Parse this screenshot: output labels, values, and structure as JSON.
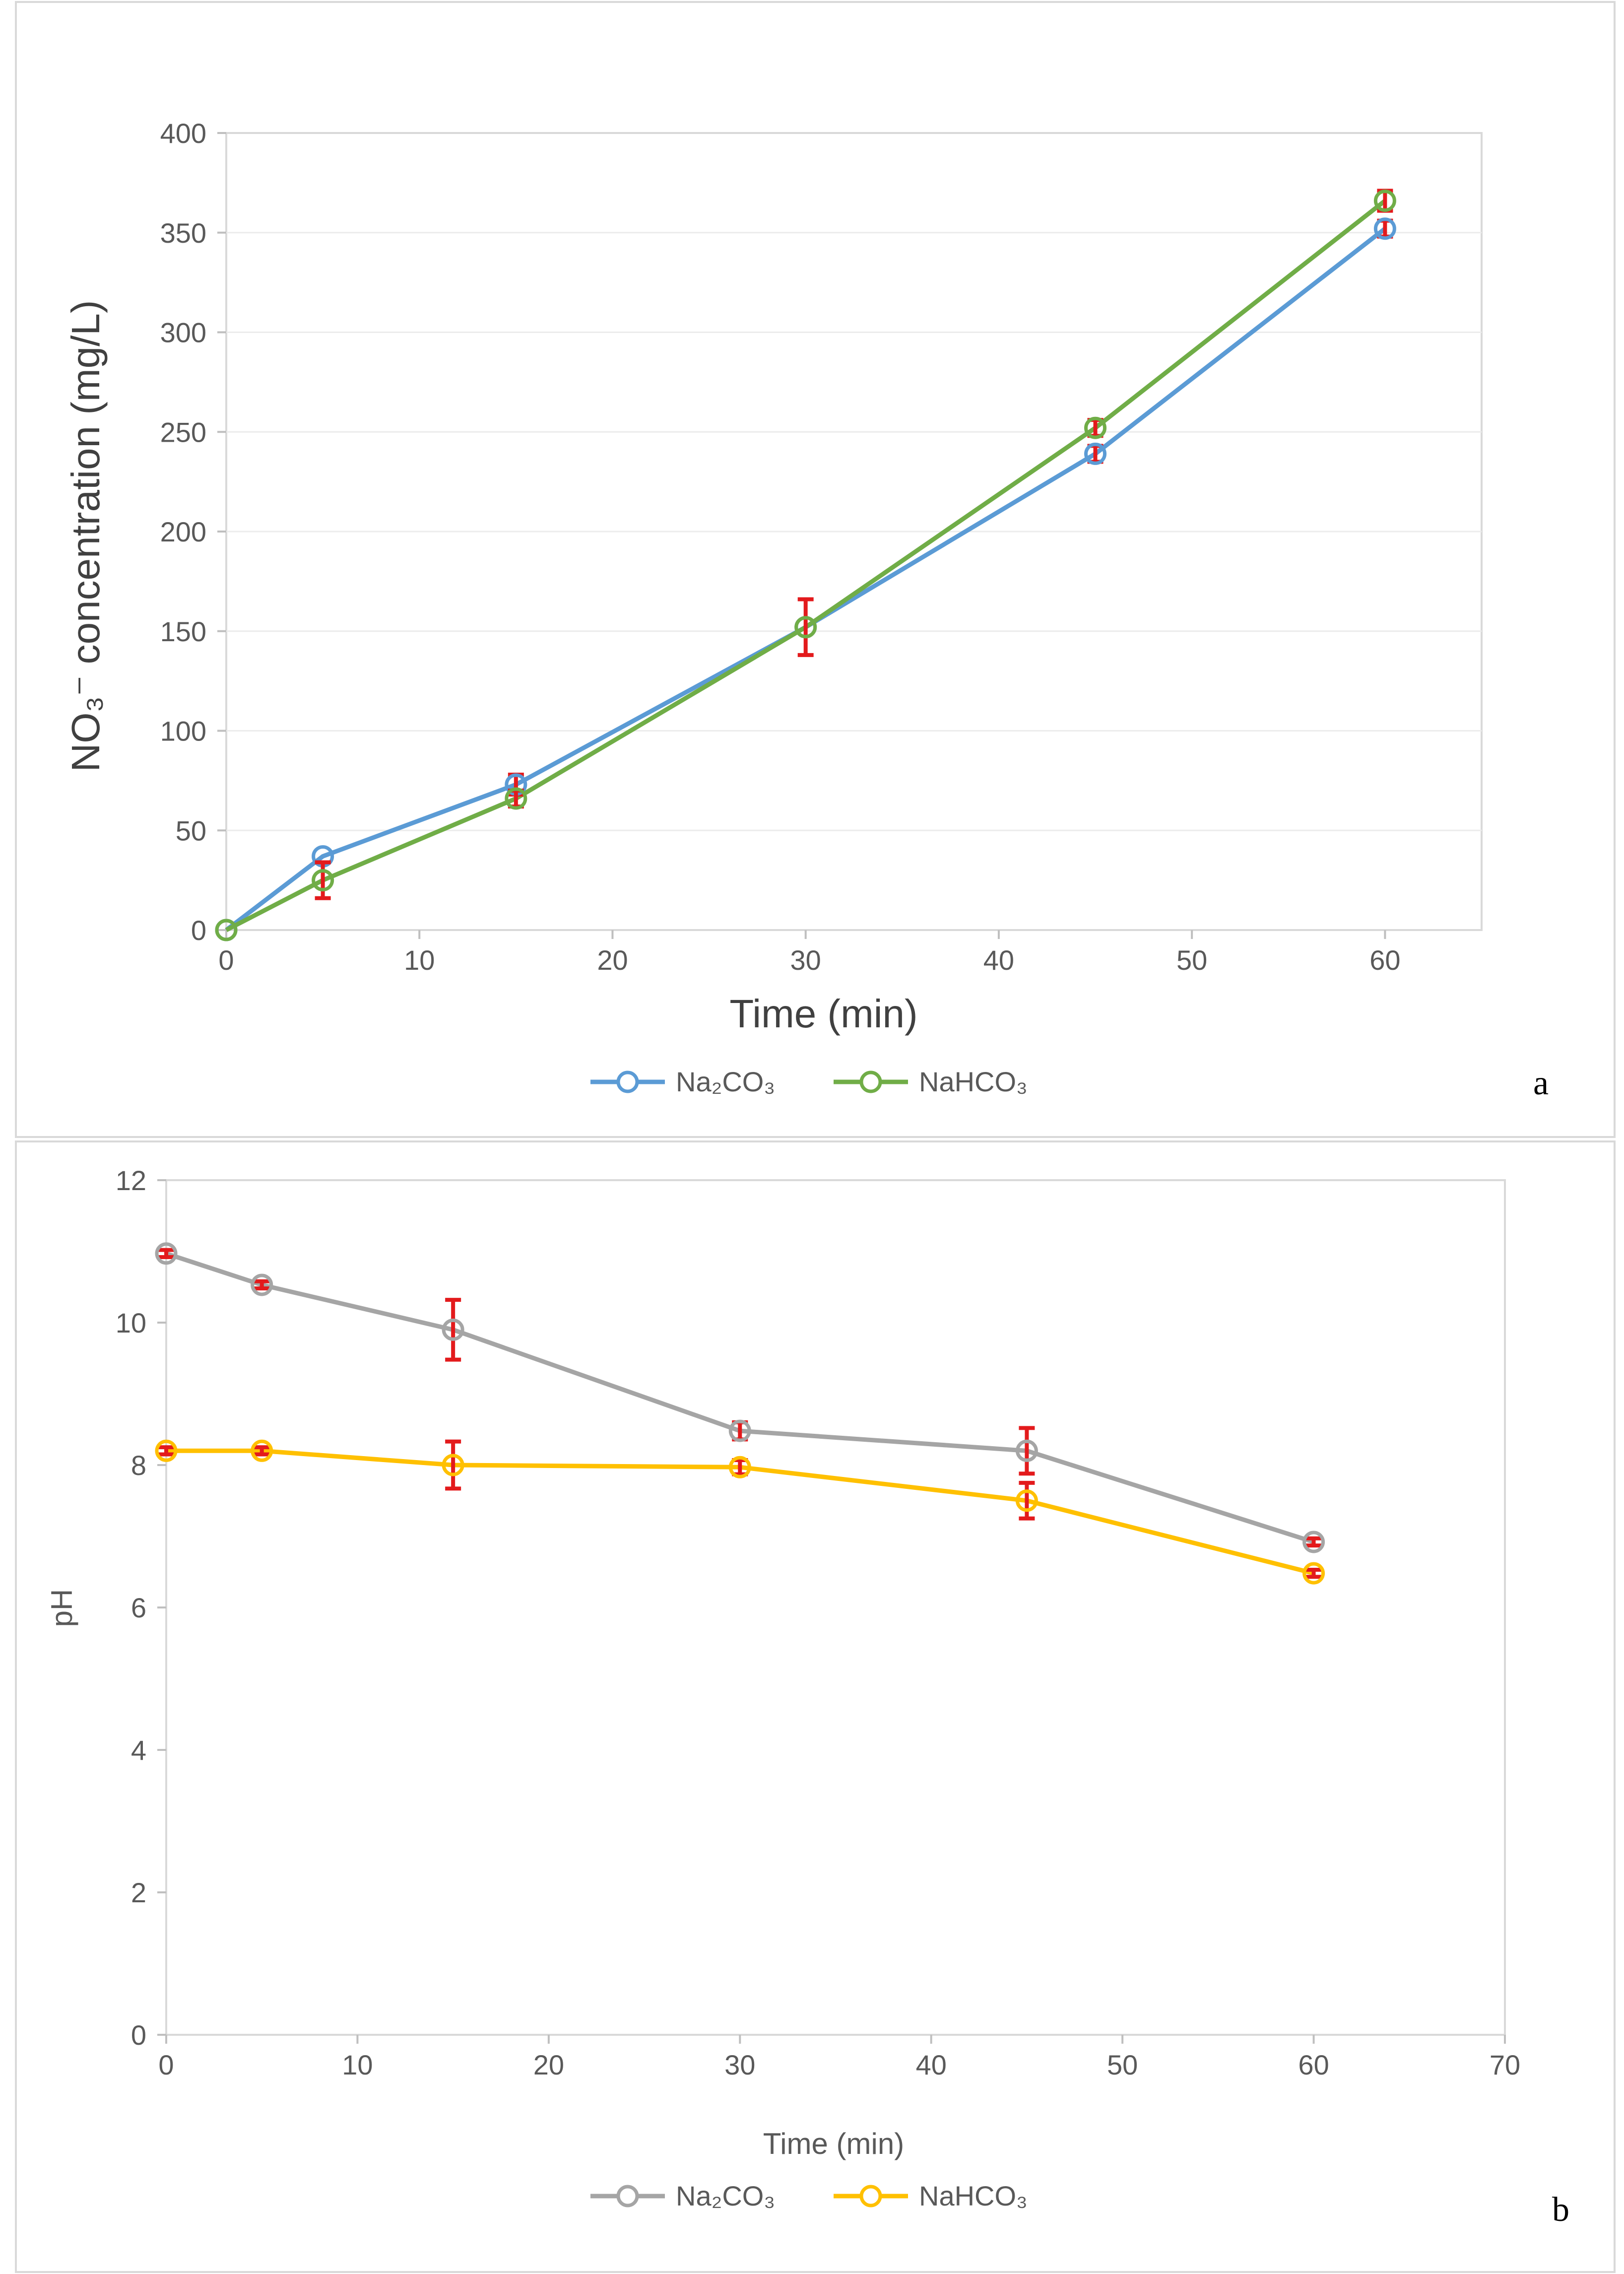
{
  "chart_data": [
    {
      "type": "line",
      "panel_label": "a",
      "xlabel": "Time (min)",
      "ylabel": "NO₃⁻ concentration (mg/L)",
      "xlim": [
        0,
        65
      ],
      "ylim": [
        0,
        400
      ],
      "x_ticks": [
        0,
        10,
        20,
        30,
        40,
        50,
        60
      ],
      "y_ticks": [
        0,
        50,
        100,
        150,
        200,
        250,
        300,
        350,
        400
      ],
      "legend_position": "bottom-center",
      "series": [
        {
          "name": "Na₂CO₃",
          "color": "#5b9bd5",
          "x": [
            0,
            5,
            15,
            30,
            45,
            60
          ],
          "values": [
            0,
            37,
            73,
            152,
            239,
            352
          ],
          "errors": [
            0,
            0,
            5,
            0,
            4,
            4
          ]
        },
        {
          "name": "NaHCO₃",
          "color": "#70ad47",
          "x": [
            0,
            5,
            15,
            30,
            45,
            60
          ],
          "values": [
            0,
            25,
            66,
            152,
            252,
            366
          ],
          "errors": [
            0,
            9,
            4,
            14,
            4,
            5
          ]
        }
      ]
    },
    {
      "type": "line",
      "panel_label": "b",
      "xlabel": "Time (min)",
      "ylabel": "pH",
      "xlim": [
        0,
        70
      ],
      "ylim": [
        0,
        12
      ],
      "x_ticks": [
        0,
        10,
        20,
        30,
        40,
        50,
        60,
        70
      ],
      "y_ticks": [
        0,
        2,
        4,
        6,
        8,
        10,
        12
      ],
      "legend_position": "bottom-center",
      "series": [
        {
          "name": "Na₂CO₃",
          "color": "#a5a5a5",
          "x": [
            0,
            5,
            15,
            30,
            45,
            60
          ],
          "values": [
            10.97,
            10.53,
            9.9,
            8.48,
            8.2,
            6.92
          ],
          "errors": [
            0.05,
            0.05,
            0.42,
            0.12,
            0.32,
            0.05
          ]
        },
        {
          "name": "NaHCO₃",
          "color": "#ffc000",
          "x": [
            0,
            5,
            15,
            30,
            45,
            60
          ],
          "values": [
            8.2,
            8.2,
            8.0,
            7.97,
            7.5,
            6.48
          ],
          "errors": [
            0.05,
            0.05,
            0.33,
            0.1,
            0.25,
            0.05
          ]
        }
      ]
    }
  ]
}
